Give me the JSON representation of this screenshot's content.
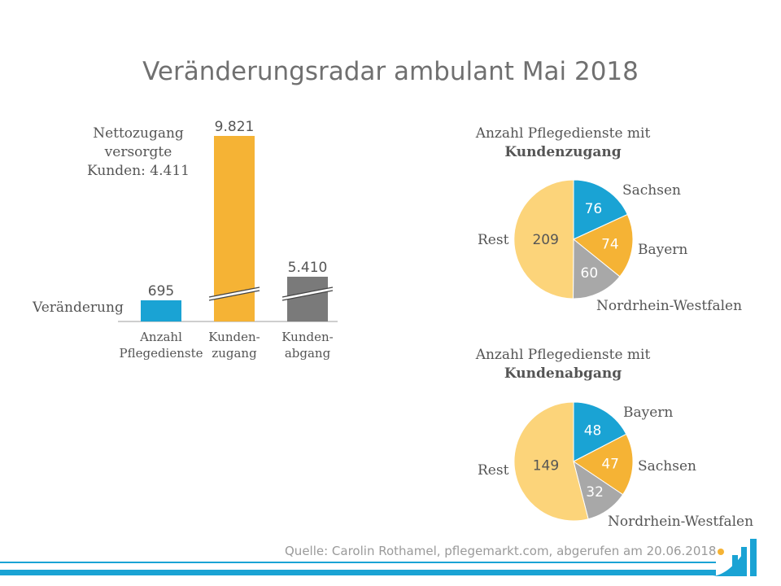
{
  "title": "Veränderungsradar ambulant Mai 2018",
  "note_lines": [
    "Nettozugang",
    "versorgte",
    "Kunden: 4.411"
  ],
  "bar_legend": "Veränderung",
  "colors": {
    "blue": "#1aa3d4",
    "orange": "#f5b335",
    "gray": "#7a7a7a",
    "rest": "#fcd47a",
    "footer": "#1aa3d4"
  },
  "chart_data": [
    {
      "type": "bar",
      "categories": [
        [
          "Anzahl",
          "Pflegedienste"
        ],
        [
          "Kunden-",
          "zugang"
        ],
        [
          "Kunden-",
          "abgang"
        ]
      ],
      "values": [
        695,
        9821,
        5410
      ],
      "value_labels": [
        "695",
        "9.821",
        "5.410"
      ],
      "axis_break": [
        false,
        true,
        true
      ],
      "colors": [
        "#1aa3d4",
        "#f5b335",
        "#7a7a7a"
      ]
    },
    {
      "type": "pie",
      "title_lines": [
        "Anzahl Pflegedienste mit",
        "Kundenzugang"
      ],
      "labels": [
        "Sachsen",
        "Bayern",
        "Nordrhein-Westfalen",
        "Rest"
      ],
      "values": [
        76,
        74,
        60,
        209
      ],
      "value_labels": [
        "76",
        "74",
        "60",
        "209"
      ],
      "colors": [
        "#1aa3d4",
        "#f5b335",
        "#a8a8a8",
        "#fcd47a"
      ]
    },
    {
      "type": "pie",
      "title_lines": [
        "Anzahl Pflegedienste mit",
        "Kundenabgang"
      ],
      "labels": [
        "Bayern",
        "Sachsen",
        "Nordrhein-Westfalen",
        "Rest"
      ],
      "values": [
        48,
        47,
        32,
        149
      ],
      "value_labels": [
        "48",
        "47",
        "32",
        "149"
      ],
      "colors": [
        "#1aa3d4",
        "#f5b335",
        "#a8a8a8",
        "#fcd47a"
      ]
    }
  ],
  "source": "Quelle: Carolin Rothamel, pflegemarkt.com, abgerufen am 20.06.2018"
}
